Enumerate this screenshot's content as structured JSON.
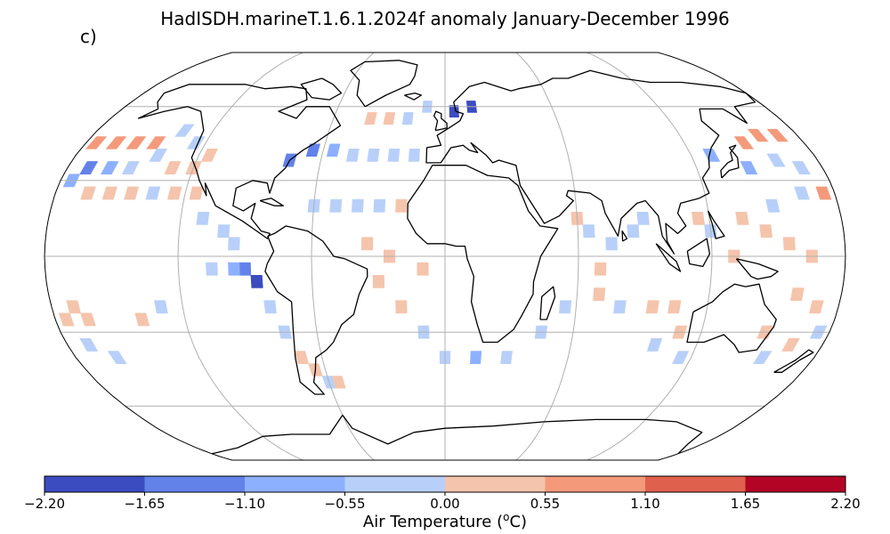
{
  "title": "HadISDH.marineT.1.6.1.2024f anomaly January-December 1996",
  "panel_label": "c)",
  "colorbar": {
    "label_prefix": "Air Temperature (",
    "label_sup": "o",
    "label_suffix": "C)",
    "ticks": [
      "−2.20",
      "−1.65",
      "−1.10",
      "−0.55",
      "0.00",
      "0.55",
      "1.10",
      "1.65",
      "2.20"
    ],
    "colors": [
      "#3b4cc0",
      "#6282ea",
      "#8db0fe",
      "#b8d0f9",
      "#f5c4ac",
      "#f49a7b",
      "#de604d",
      "#b40426"
    ]
  },
  "map_style": {
    "land_outline": "#000000",
    "graticule": "#b0b0b0",
    "projection": "Robinson"
  },
  "chart_data": {
    "type": "heatmap",
    "variable": "Air Temperature anomaly",
    "units": "oC",
    "vmin": -2.2,
    "vmax": 2.2,
    "cells": [
      {
        "lon": -155,
        "lat": 45,
        "v": 0.8
      },
      {
        "lon": -165,
        "lat": 45,
        "v": 0.8
      },
      {
        "lon": -145,
        "lat": 45,
        "v": 0.6
      },
      {
        "lon": -175,
        "lat": 45,
        "v": 0.7
      },
      {
        "lon": -135,
        "lat": 50,
        "v": -0.4
      },
      {
        "lon": -125,
        "lat": 45,
        "v": -0.4
      },
      {
        "lon": -115,
        "lat": 40,
        "v": 0.3
      },
      {
        "lon": -120,
        "lat": 35,
        "v": 0.3
      },
      {
        "lon": -130,
        "lat": 35,
        "v": 0.4
      },
      {
        "lon": -140,
        "lat": 40,
        "v": -0.3
      },
      {
        "lon": -150,
        "lat": 35,
        "v": -0.3
      },
      {
        "lon": -160,
        "lat": 35,
        "v": -0.6
      },
      {
        "lon": -170,
        "lat": 35,
        "v": -1.2
      },
      {
        "lon": -175,
        "lat": 30,
        "v": -0.7
      },
      {
        "lon": -165,
        "lat": 25,
        "v": 0.4
      },
      {
        "lon": -155,
        "lat": 25,
        "v": 0.5
      },
      {
        "lon": -145,
        "lat": 25,
        "v": 0.4
      },
      {
        "lon": -135,
        "lat": 25,
        "v": -0.3
      },
      {
        "lon": -125,
        "lat": 25,
        "v": 0.3
      },
      {
        "lon": -115,
        "lat": 25,
        "v": 0.3
      },
      {
        "lon": -110,
        "lat": 15,
        "v": -0.3
      },
      {
        "lon": -100,
        "lat": 10,
        "v": -0.3
      },
      {
        "lon": -95,
        "lat": 5,
        "v": -0.3
      },
      {
        "lon": -90,
        "lat": -5,
        "v": -1.3
      },
      {
        "lon": -85,
        "lat": -10,
        "v": -1.8
      },
      {
        "lon": -95,
        "lat": -5,
        "v": -0.8
      },
      {
        "lon": -105,
        "lat": -5,
        "v": -0.4
      },
      {
        "lon": -80,
        "lat": -20,
        "v": -0.3
      },
      {
        "lon": -75,
        "lat": -30,
        "v": -0.3
      },
      {
        "lon": -70,
        "lat": -40,
        "v": 0.3
      },
      {
        "lon": -65,
        "lat": -45,
        "v": 0.3
      },
      {
        "lon": -60,
        "lat": -50,
        "v": -0.3
      },
      {
        "lon": -55,
        "lat": -50,
        "v": 0.3
      },
      {
        "lon": -170,
        "lat": -20,
        "v": 0.3
      },
      {
        "lon": -175,
        "lat": -25,
        "v": 0.4
      },
      {
        "lon": -165,
        "lat": -25,
        "v": 0.3
      },
      {
        "lon": -170,
        "lat": -35,
        "v": -0.3
      },
      {
        "lon": -160,
        "lat": -40,
        "v": -0.3
      },
      {
        "lon": -140,
        "lat": -25,
        "v": 0.3
      },
      {
        "lon": -130,
        "lat": -20,
        "v": -0.3
      },
      {
        "lon": -75,
        "lat": 38,
        "v": -1.2
      },
      {
        "lon": -65,
        "lat": 42,
        "v": -1.2
      },
      {
        "lon": -55,
        "lat": 42,
        "v": -0.9
      },
      {
        "lon": -45,
        "lat": 40,
        "v": -0.4
      },
      {
        "lon": -35,
        "lat": 40,
        "v": -0.4
      },
      {
        "lon": -25,
        "lat": 40,
        "v": -0.3
      },
      {
        "lon": -15,
        "lat": 40,
        "v": -0.3
      },
      {
        "lon": -40,
        "lat": 55,
        "v": 0.3
      },
      {
        "lon": -30,
        "lat": 55,
        "v": 0.4
      },
      {
        "lon": -20,
        "lat": 55,
        "v": -0.3
      },
      {
        "lon": -10,
        "lat": 60,
        "v": -0.4
      },
      {
        "lon": 5,
        "lat": 58,
        "v": -1.9
      },
      {
        "lon": 15,
        "lat": 60,
        "v": -1.8
      },
      {
        "lon": -60,
        "lat": 20,
        "v": -0.3
      },
      {
        "lon": -50,
        "lat": 20,
        "v": -0.3
      },
      {
        "lon": -40,
        "lat": 20,
        "v": -0.3
      },
      {
        "lon": -30,
        "lat": 20,
        "v": -0.3
      },
      {
        "lon": -20,
        "lat": 20,
        "v": 0.3
      },
      {
        "lon": -35,
        "lat": 5,
        "v": 0.3
      },
      {
        "lon": -25,
        "lat": 0,
        "v": 0.3
      },
      {
        "lon": -30,
        "lat": -10,
        "v": 0.3
      },
      {
        "lon": -20,
        "lat": -20,
        "v": 0.3
      },
      {
        "lon": -10,
        "lat": -5,
        "v": 0.3
      },
      {
        "lon": -10,
        "lat": -30,
        "v": -0.3
      },
      {
        "lon": 0,
        "lat": -40,
        "v": -0.3
      },
      {
        "lon": 15,
        "lat": -40,
        "v": -0.7
      },
      {
        "lon": 30,
        "lat": -40,
        "v": -0.4
      },
      {
        "lon": 45,
        "lat": -30,
        "v": -0.3
      },
      {
        "lon": 55,
        "lat": -20,
        "v": -0.3
      },
      {
        "lon": 60,
        "lat": 15,
        "v": 0.3
      },
      {
        "lon": 65,
        "lat": 10,
        "v": -0.3
      },
      {
        "lon": 75,
        "lat": 5,
        "v": -0.3
      },
      {
        "lon": 85,
        "lat": 10,
        "v": -0.3
      },
      {
        "lon": 90,
        "lat": 15,
        "v": -0.3
      },
      {
        "lon": 70,
        "lat": -5,
        "v": 0.3
      },
      {
        "lon": 70,
        "lat": -15,
        "v": 0.4
      },
      {
        "lon": 80,
        "lat": -20,
        "v": -0.3
      },
      {
        "lon": 95,
        "lat": -20,
        "v": 0.3
      },
      {
        "lon": 105,
        "lat": -20,
        "v": 0.3
      },
      {
        "lon": 110,
        "lat": -30,
        "v": 0.3
      },
      {
        "lon": 100,
        "lat": -35,
        "v": -0.3
      },
      {
        "lon": 115,
        "lat": -40,
        "v": -0.3
      },
      {
        "lon": 130,
        "lat": 40,
        "v": -0.6
      },
      {
        "lon": 145,
        "lat": 35,
        "v": -0.6
      },
      {
        "lon": 150,
        "lat": 45,
        "v": 0.8
      },
      {
        "lon": 160,
        "lat": 48,
        "v": 0.8
      },
      {
        "lon": 170,
        "lat": 48,
        "v": 0.8
      },
      {
        "lon": 160,
        "lat": 38,
        "v": -0.5
      },
      {
        "lon": 170,
        "lat": 35,
        "v": -0.4
      },
      {
        "lon": 175,
        "lat": 25,
        "v": 0.6
      },
      {
        "lon": 165,
        "lat": 25,
        "v": -0.3
      },
      {
        "lon": 150,
        "lat": 20,
        "v": -0.3
      },
      {
        "lon": 135,
        "lat": 15,
        "v": 0.3
      },
      {
        "lon": 145,
        "lat": 10,
        "v": 0.3
      },
      {
        "lon": 155,
        "lat": 5,
        "v": 0.3
      },
      {
        "lon": 165,
        "lat": 0,
        "v": 0.3
      },
      {
        "lon": 130,
        "lat": 0,
        "v": 0.3
      },
      {
        "lon": 120,
        "lat": 10,
        "v": -0.3
      },
      {
        "lon": 115,
        "lat": 15,
        "v": 0.3
      },
      {
        "lon": 160,
        "lat": -15,
        "v": 0.4
      },
      {
        "lon": 170,
        "lat": -20,
        "v": 0.3
      },
      {
        "lon": 175,
        "lat": -30,
        "v": -0.3
      },
      {
        "lon": 165,
        "lat": -35,
        "v": 0.3
      },
      {
        "lon": 155,
        "lat": -40,
        "v": -0.3
      },
      {
        "lon": 150,
        "lat": -30,
        "v": 0.3
      }
    ]
  }
}
